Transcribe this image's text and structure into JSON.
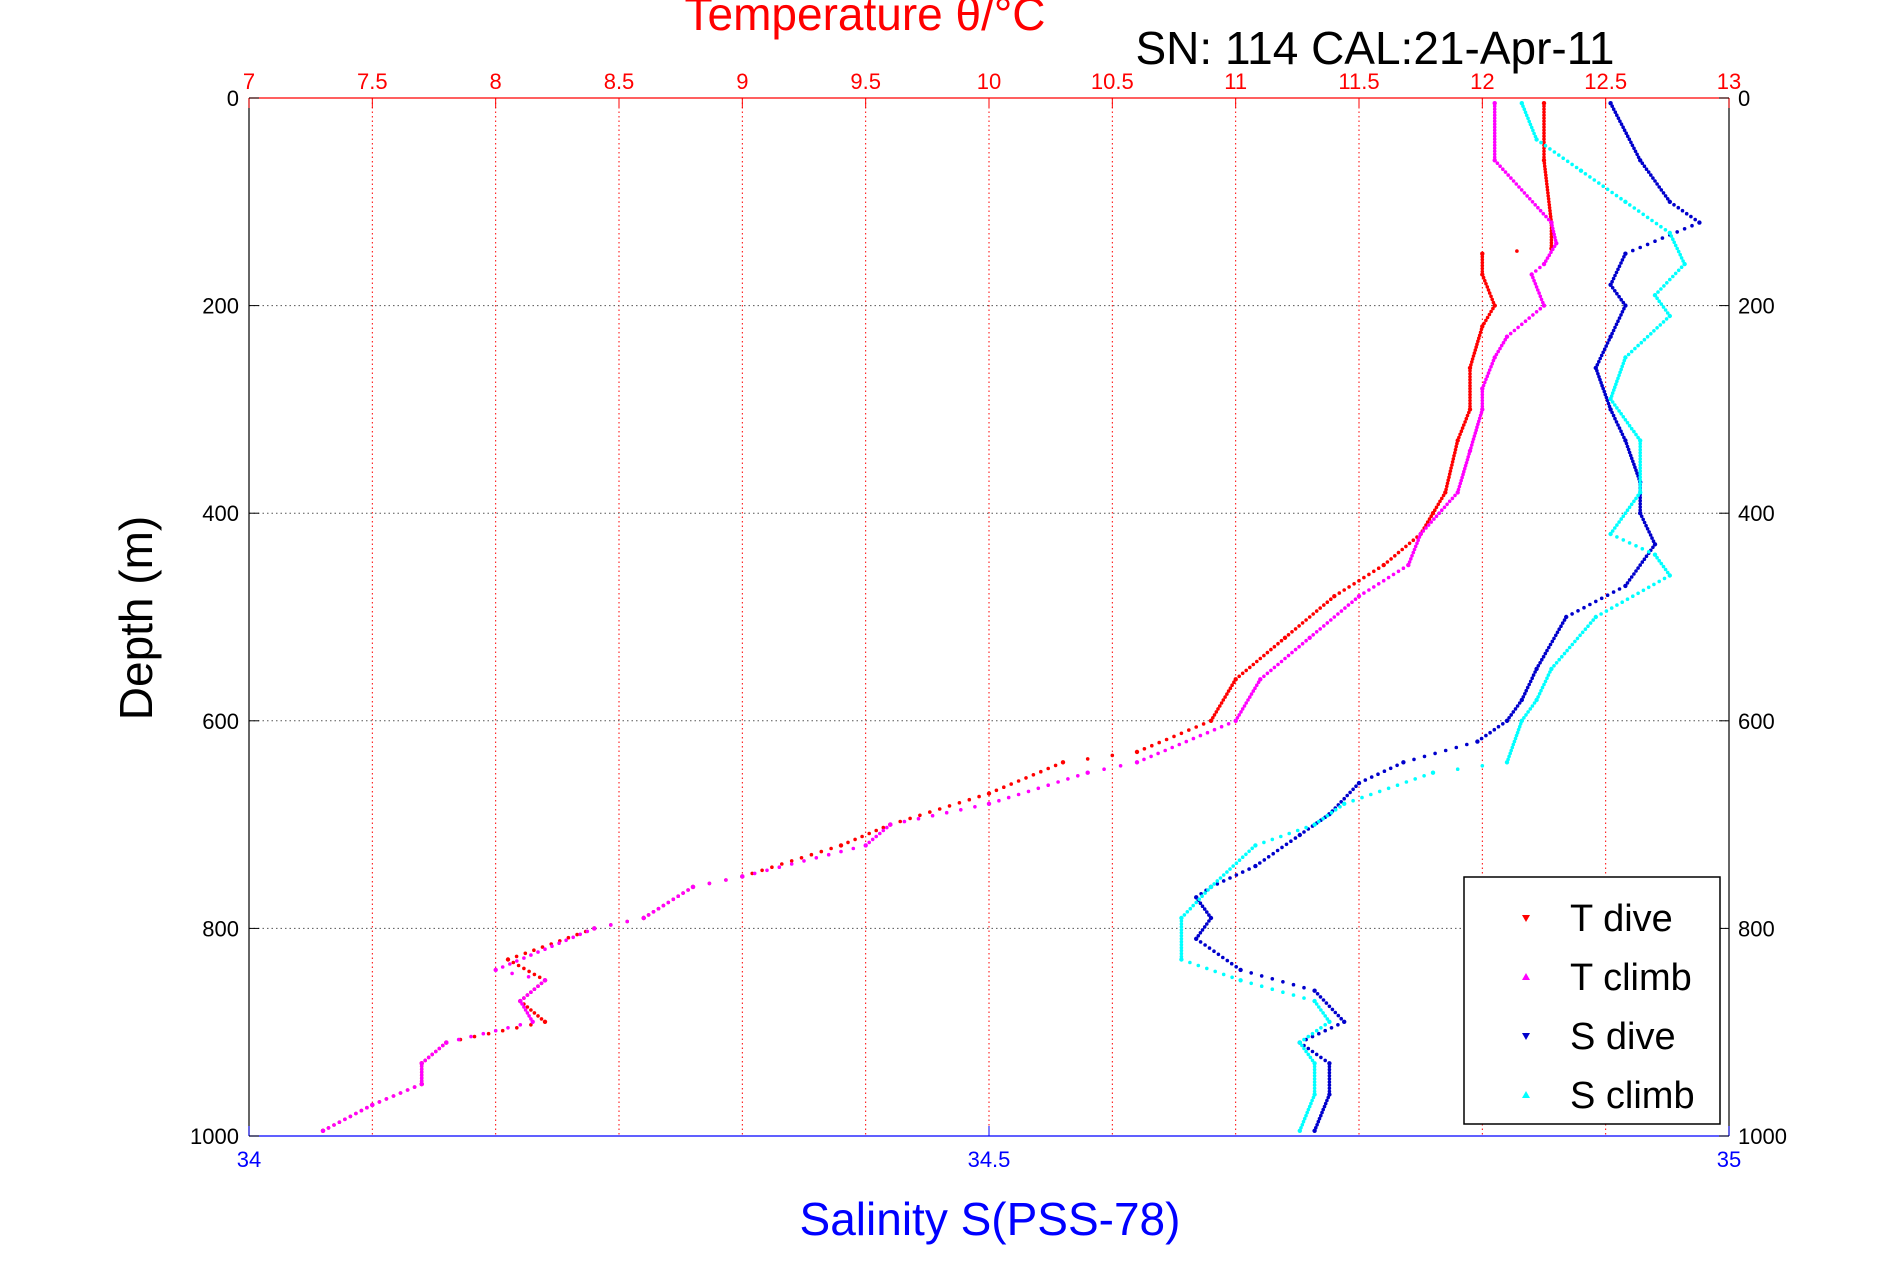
{
  "chart_data": {
    "type": "scatter",
    "title": "Temperature θ/°C",
    "annotation": "SN: 114  CAL:21-Apr-11",
    "ylabel": "Depth (m)",
    "xlabel_top": "Temperature θ/°C",
    "xlabel_bottom": "Salinity S(PSS-78)",
    "ylim": [
      0,
      1000
    ],
    "y_reversed": true,
    "y_ticks": [
      "0",
      "200",
      "400",
      "600",
      "800",
      "1000"
    ],
    "temperature_axis": {
      "range": [
        7,
        13
      ],
      "ticks": [
        "7",
        "7.5",
        "8",
        "8.5",
        "9",
        "9.5",
        "10",
        "10.5",
        "11",
        "11.5",
        "12",
        "12.5",
        "13"
      ]
    },
    "salinity_axis": {
      "range": [
        34,
        35
      ],
      "ticks": [
        "34",
        "34.5",
        "35"
      ]
    },
    "grid": true,
    "legend_position": "bottom-right",
    "colors": {
      "temperature_axis": "#ff0000",
      "salinity_axis": "#0000ff",
      "grid": "#555555"
    },
    "series": [
      {
        "name": "T dive",
        "axis": "temperature",
        "color": "#ff0000",
        "marker": "triangle-down",
        "points": [
          [
            12.25,
            5
          ],
          [
            12.25,
            60
          ],
          [
            12.28,
            120
          ],
          [
            12.28,
            145
          ],
          [
            12.0,
            150
          ],
          [
            12.0,
            170
          ],
          [
            12.05,
            200
          ],
          [
            12.0,
            220
          ],
          [
            11.95,
            260
          ],
          [
            11.95,
            300
          ],
          [
            11.9,
            330
          ],
          [
            11.85,
            380
          ],
          [
            11.8,
            400
          ],
          [
            11.75,
            420
          ],
          [
            11.6,
            450
          ],
          [
            11.4,
            480
          ],
          [
            11.2,
            520
          ],
          [
            11.0,
            560
          ],
          [
            10.9,
            600
          ],
          [
            10.6,
            630
          ],
          [
            10.3,
            640
          ],
          [
            10.0,
            670
          ],
          [
            9.6,
            700
          ],
          [
            9.4,
            720
          ],
          [
            9.0,
            750
          ],
          [
            8.8,
            760
          ],
          [
            8.6,
            790
          ],
          [
            8.4,
            800
          ],
          [
            8.05,
            830
          ],
          [
            8.2,
            850
          ],
          [
            8.1,
            870
          ],
          [
            8.2,
            890
          ],
          [
            7.8,
            910
          ],
          [
            7.7,
            930
          ],
          [
            7.7,
            950
          ],
          [
            7.5,
            970
          ],
          [
            7.3,
            995
          ]
        ]
      },
      {
        "name": "T climb",
        "axis": "temperature",
        "color": "#ff00ff",
        "marker": "triangle-up",
        "points": [
          [
            12.05,
            5
          ],
          [
            12.05,
            60
          ],
          [
            12.28,
            120
          ],
          [
            12.3,
            140
          ],
          [
            12.25,
            160
          ],
          [
            12.2,
            170
          ],
          [
            12.25,
            200
          ],
          [
            12.1,
            230
          ],
          [
            12.05,
            250
          ],
          [
            12.0,
            280
          ],
          [
            12.0,
            300
          ],
          [
            11.95,
            340
          ],
          [
            11.9,
            380
          ],
          [
            11.75,
            420
          ],
          [
            11.7,
            450
          ],
          [
            11.5,
            480
          ],
          [
            11.3,
            520
          ],
          [
            11.1,
            560
          ],
          [
            11.0,
            600
          ],
          [
            10.6,
            640
          ],
          [
            10.4,
            650
          ],
          [
            10.0,
            680
          ],
          [
            9.6,
            700
          ],
          [
            9.5,
            720
          ],
          [
            9.0,
            750
          ],
          [
            8.8,
            760
          ],
          [
            8.6,
            790
          ],
          [
            8.4,
            800
          ],
          [
            8.0,
            840
          ],
          [
            8.2,
            850
          ],
          [
            8.1,
            870
          ],
          [
            8.15,
            890
          ],
          [
            7.8,
            910
          ],
          [
            7.7,
            930
          ],
          [
            7.7,
            950
          ],
          [
            7.5,
            970
          ],
          [
            7.3,
            995
          ]
        ]
      },
      {
        "name": "S dive",
        "axis": "salinity",
        "color": "#0000cc",
        "marker": "triangle-down",
        "points": [
          [
            34.92,
            5
          ],
          [
            34.94,
            60
          ],
          [
            34.96,
            100
          ],
          [
            34.98,
            120
          ],
          [
            34.93,
            150
          ],
          [
            34.92,
            180
          ],
          [
            34.93,
            200
          ],
          [
            34.92,
            230
          ],
          [
            34.91,
            260
          ],
          [
            34.92,
            300
          ],
          [
            34.93,
            330
          ],
          [
            34.94,
            370
          ],
          [
            34.94,
            400
          ],
          [
            34.95,
            430
          ],
          [
            34.93,
            470
          ],
          [
            34.89,
            500
          ],
          [
            34.87,
            550
          ],
          [
            34.86,
            580
          ],
          [
            34.85,
            600
          ],
          [
            34.83,
            620
          ],
          [
            34.78,
            640
          ],
          [
            34.75,
            660
          ],
          [
            34.73,
            690
          ],
          [
            34.71,
            710
          ],
          [
            34.68,
            740
          ],
          [
            34.65,
            760
          ],
          [
            34.64,
            770
          ],
          [
            34.65,
            790
          ],
          [
            34.64,
            810
          ],
          [
            34.67,
            840
          ],
          [
            34.72,
            860
          ],
          [
            34.74,
            890
          ],
          [
            34.71,
            910
          ],
          [
            34.73,
            930
          ],
          [
            34.73,
            960
          ],
          [
            34.72,
            995
          ]
        ]
      },
      {
        "name": "S climb",
        "axis": "salinity",
        "color": "#00ffff",
        "marker": "triangle-up",
        "points": [
          [
            34.86,
            5
          ],
          [
            34.87,
            40
          ],
          [
            34.9,
            70
          ],
          [
            34.93,
            100
          ],
          [
            34.96,
            130
          ],
          [
            34.97,
            160
          ],
          [
            34.95,
            190
          ],
          [
            34.96,
            210
          ],
          [
            34.93,
            250
          ],
          [
            34.92,
            290
          ],
          [
            34.94,
            330
          ],
          [
            34.94,
            380
          ],
          [
            34.92,
            420
          ],
          [
            34.95,
            440
          ],
          [
            34.96,
            460
          ],
          [
            34.91,
            500
          ],
          [
            34.88,
            550
          ],
          [
            34.87,
            580
          ],
          [
            34.86,
            600
          ],
          [
            34.85,
            640
          ],
          [
            34.8,
            650
          ],
          [
            34.74,
            680
          ],
          [
            34.72,
            700
          ],
          [
            34.68,
            720
          ],
          [
            34.65,
            760
          ],
          [
            34.63,
            790
          ],
          [
            34.63,
            830
          ],
          [
            34.67,
            850
          ],
          [
            34.72,
            870
          ],
          [
            34.73,
            890
          ],
          [
            34.71,
            910
          ],
          [
            34.72,
            930
          ],
          [
            34.72,
            960
          ],
          [
            34.71,
            995
          ]
        ]
      }
    ]
  }
}
